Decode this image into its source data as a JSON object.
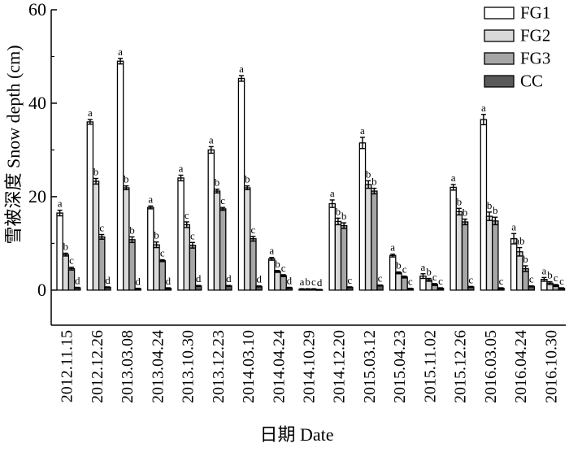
{
  "chart_data": {
    "type": "bar",
    "title": "",
    "xlabel": "日期 Date",
    "ylabel": "雪被深度 Snow depth (cm)",
    "ylim": [
      -7.5,
      60
    ],
    "yticks": [
      0,
      20,
      40,
      60
    ],
    "grid": false,
    "legend_position": "top-right",
    "categories": [
      "2012.11.15",
      "2012.12.26",
      "2013.03.08",
      "2013.04.24",
      "2013.10.30",
      "2013.12.23",
      "2014.03.10",
      "2014.04.24",
      "2014.10.29",
      "2014.12.20",
      "2015.03.12",
      "2015.04.23",
      "2015.11.02",
      "2015.12.26",
      "2016.03.05",
      "2016.04.24",
      "2016.10.30"
    ],
    "series": [
      {
        "name": "FG1",
        "color": "#ffffff",
        "values": [
          16.5,
          36,
          49,
          17.7,
          24,
          30,
          45.3,
          6.7,
          0.2,
          18.5,
          31.5,
          7.4,
          3,
          22,
          36.5,
          11,
          2.3
        ],
        "errors": [
          0.6,
          0.5,
          0.6,
          0.3,
          0.6,
          0.7,
          0.6,
          0.3,
          0.1,
          0.8,
          1.2,
          0.3,
          0.5,
          0.6,
          1.1,
          1.1,
          0.4
        ],
        "labels": [
          "a",
          "a",
          "a",
          "a",
          "a",
          "a",
          "a",
          "a",
          "a",
          "a",
          "a",
          "a",
          "a",
          "a",
          "a",
          "a",
          "a"
        ]
      },
      {
        "name": "FG2",
        "color": "#d9d9d9",
        "values": [
          7.6,
          23.3,
          21.9,
          9.7,
          14,
          21.2,
          21.9,
          4,
          0.2,
          14.7,
          22.6,
          3.7,
          2.2,
          16.8,
          15.8,
          8.2,
          1.5
        ],
        "errors": [
          0.3,
          0.6,
          0.4,
          0.6,
          0.6,
          0.4,
          0.4,
          0.2,
          0.1,
          0.7,
          0.8,
          0.2,
          0.3,
          0.7,
          0.9,
          0.9,
          0.3
        ],
        "labels": [
          "b",
          "b",
          "b",
          "b",
          "c",
          "b",
          "b",
          "b",
          "b",
          "b",
          "b",
          "b",
          "b",
          "b",
          "b",
          "ab",
          "b"
        ]
      },
      {
        "name": "FG3",
        "color": "#a6a6a6",
        "values": [
          4.6,
          11.4,
          10.8,
          6.3,
          9.6,
          17.4,
          11,
          3.1,
          0.2,
          13.8,
          21.2,
          2.8,
          1.2,
          14.6,
          14.8,
          4.6,
          1
        ],
        "errors": [
          0.3,
          0.5,
          0.6,
          0.2,
          0.6,
          0.3,
          0.5,
          0.2,
          0.1,
          0.6,
          0.6,
          0.2,
          0.2,
          0.6,
          0.8,
          0.6,
          0.2
        ],
        "labels": [
          "c",
          "c",
          "b",
          "c",
          "c",
          "c",
          "c",
          "c",
          "c",
          "b",
          "b",
          "c",
          "c",
          "b",
          "b",
          "b",
          "c"
        ]
      },
      {
        "name": "CC",
        "color": "#595959",
        "values": [
          0.5,
          0.6,
          0.3,
          0.4,
          0.9,
          0.9,
          0.8,
          0.5,
          0.1,
          0.6,
          1,
          0.3,
          0.4,
          0.7,
          0.4,
          0.8,
          0.4
        ],
        "errors": [
          0.1,
          0.1,
          0.1,
          0.1,
          0.1,
          0.1,
          0.1,
          0.1,
          0.05,
          0.1,
          0.1,
          0.1,
          0.1,
          0.1,
          0.1,
          0.1,
          0.1
        ],
        "labels": [
          "d",
          "d",
          "d",
          "d",
          "d",
          "d",
          "d",
          "d",
          "d",
          "c",
          "c",
          "c",
          "c",
          "c",
          "c",
          "c",
          "c"
        ]
      }
    ]
  }
}
